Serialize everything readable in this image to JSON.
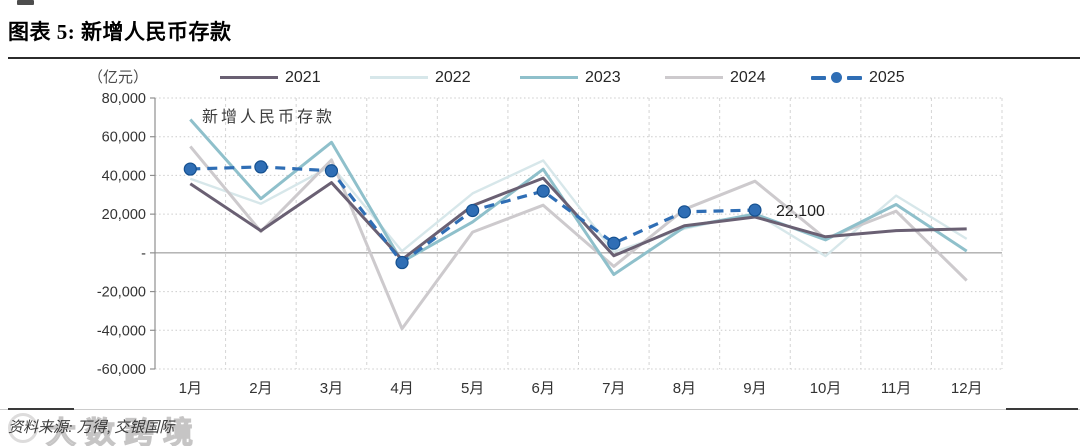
{
  "header": {
    "title": "图表 5: 新增人民币存款"
  },
  "chart_data": {
    "type": "line",
    "title": "新增人民币存款",
    "unit_label": "（亿元）",
    "annotation": "新增人民币存款",
    "legend_position": "top",
    "grid": "on",
    "categories": [
      "1月",
      "2月",
      "3月",
      "4月",
      "5月",
      "6月",
      "7月",
      "8月",
      "9月",
      "10月",
      "11月",
      "12月"
    ],
    "y_ticks": [
      {
        "value": 80000,
        "label": "80,000"
      },
      {
        "value": 60000,
        "label": "60,000"
      },
      {
        "value": 40000,
        "label": "40,000"
      },
      {
        "value": 20000,
        "label": "20,000"
      },
      {
        "value": 0,
        "label": "-"
      },
      {
        "value": -20000,
        "label": "-20,000"
      },
      {
        "value": -40000,
        "label": "-40,000"
      },
      {
        "value": -60000,
        "label": "-60,000"
      }
    ],
    "ylim": [
      -60000,
      80000
    ],
    "series": [
      {
        "name": "2021",
        "color": "#6a6073",
        "style": "solid",
        "values": [
          35700,
          11400,
          36300,
          -3500,
          24400,
          38600,
          -1500,
          14000,
          18500,
          8300,
          11500,
          12400
        ]
      },
      {
        "name": "2022",
        "color": "#d7e7ea",
        "style": "solid",
        "values": [
          38300,
          25400,
          44900,
          900,
          30700,
          47700,
          500,
          12500,
          20500,
          -1700,
          29600,
          7200
        ]
      },
      {
        "name": "2023",
        "color": "#8fc0cb",
        "style": "solid",
        "values": [
          68900,
          28000,
          57100,
          -4600,
          16000,
          43200,
          -11200,
          13300,
          20000,
          6700,
          25000,
          900
        ]
      },
      {
        "name": "2024",
        "color": "#cdcacd",
        "style": "solid",
        "values": [
          55000,
          11000,
          48000,
          -39200,
          10700,
          24600,
          -7000,
          22500,
          37000,
          7400,
          21500,
          -14300
        ]
      },
      {
        "name": "2025",
        "color": "#2f6eb5",
        "style": "dashed-marker",
        "values": [
          43300,
          44400,
          42400,
          -5000,
          21900,
          31900,
          5000,
          21200,
          22100,
          null,
          null,
          null
        ]
      }
    ],
    "point_label": {
      "series": "2025",
      "month_index": 8,
      "text": "22,100"
    }
  },
  "footer": {
    "source": "资料来源: 万得, 交银国际",
    "watermark": "大数跨境"
  }
}
